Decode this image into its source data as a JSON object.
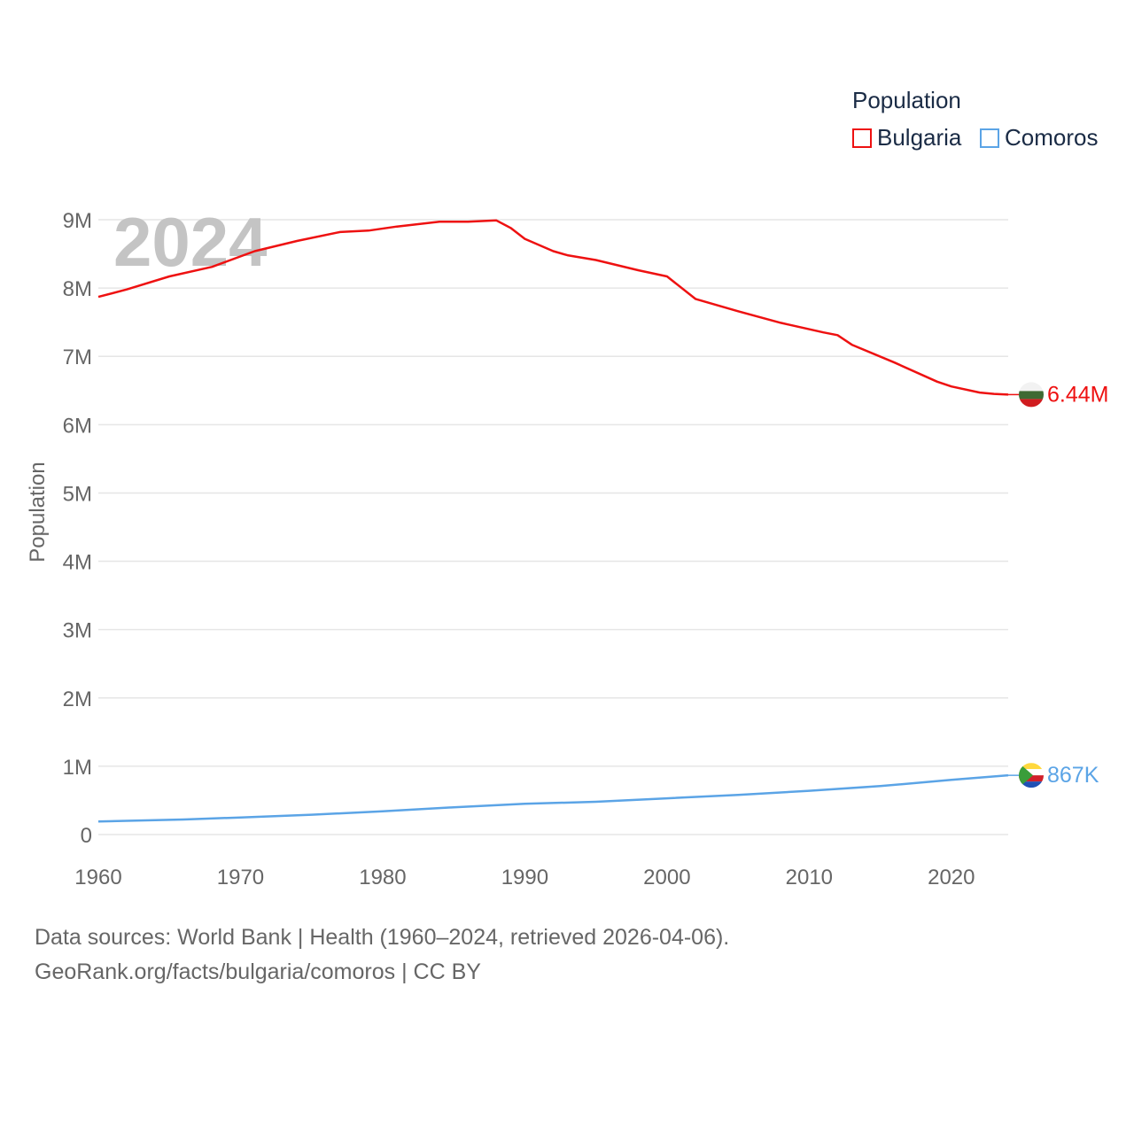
{
  "legend": {
    "title": "Population",
    "items": [
      {
        "label": "Bulgaria",
        "color": "#ee1111"
      },
      {
        "label": "Comoros",
        "color": "#5ba4e6"
      }
    ]
  },
  "year_watermark": "2024",
  "source": {
    "line1": "Data sources: World Bank | Health (1960–2024, retrieved 2026-04-06).",
    "line2": "GeoRank.org/facts/bulgaria/comoros | CC BY"
  },
  "chart_data": {
    "type": "line",
    "title": "Population",
    "xlabel": "",
    "ylabel": "Population",
    "xlim": [
      1960,
      2024
    ],
    "ylim": [
      0,
      9000000
    ],
    "grid": true,
    "legend_position": "top-right",
    "x_ticks": [
      1960,
      1970,
      1980,
      1990,
      2000,
      2010,
      2020
    ],
    "y_ticks": [
      {
        "value": 0,
        "label": "0"
      },
      {
        "value": 1000000,
        "label": "1M"
      },
      {
        "value": 2000000,
        "label": "2M"
      },
      {
        "value": 3000000,
        "label": "3M"
      },
      {
        "value": 4000000,
        "label": "4M"
      },
      {
        "value": 5000000,
        "label": "5M"
      },
      {
        "value": 6000000,
        "label": "6M"
      },
      {
        "value": 7000000,
        "label": "7M"
      },
      {
        "value": 8000000,
        "label": "8M"
      },
      {
        "value": 9000000,
        "label": "9M"
      }
    ],
    "series": [
      {
        "name": "Bulgaria",
        "color": "#ee1111",
        "end_label": "6.44M",
        "points": [
          [
            1960,
            7870000
          ],
          [
            1962,
            7980000
          ],
          [
            1965,
            8170000
          ],
          [
            1968,
            8310000
          ],
          [
            1971,
            8540000
          ],
          [
            1974,
            8690000
          ],
          [
            1977,
            8820000
          ],
          [
            1979,
            8840000
          ],
          [
            1981,
            8900000
          ],
          [
            1984,
            8970000
          ],
          [
            1986,
            8970000
          ],
          [
            1988,
            8990000
          ],
          [
            1989,
            8880000
          ],
          [
            1990,
            8720000
          ],
          [
            1992,
            8540000
          ],
          [
            1993,
            8480000
          ],
          [
            1995,
            8410000
          ],
          [
            1998,
            8260000
          ],
          [
            2000,
            8170000
          ],
          [
            2002,
            7840000
          ],
          [
            2005,
            7660000
          ],
          [
            2008,
            7490000
          ],
          [
            2011,
            7350000
          ],
          [
            2012,
            7310000
          ],
          [
            2013,
            7170000
          ],
          [
            2016,
            6910000
          ],
          [
            2019,
            6630000
          ],
          [
            2020,
            6560000
          ],
          [
            2022,
            6470000
          ],
          [
            2023,
            6450000
          ],
          [
            2024,
            6440000
          ]
        ]
      },
      {
        "name": "Comoros",
        "color": "#5ba4e6",
        "end_label": "867K",
        "points": [
          [
            1960,
            190000
          ],
          [
            1966,
            220000
          ],
          [
            1970,
            250000
          ],
          [
            1975,
            290000
          ],
          [
            1980,
            340000
          ],
          [
            1985,
            400000
          ],
          [
            1990,
            450000
          ],
          [
            1995,
            480000
          ],
          [
            2000,
            530000
          ],
          [
            2005,
            580000
          ],
          [
            2010,
            640000
          ],
          [
            2015,
            710000
          ],
          [
            2020,
            800000
          ],
          [
            2024,
            867000
          ]
        ]
      }
    ]
  }
}
